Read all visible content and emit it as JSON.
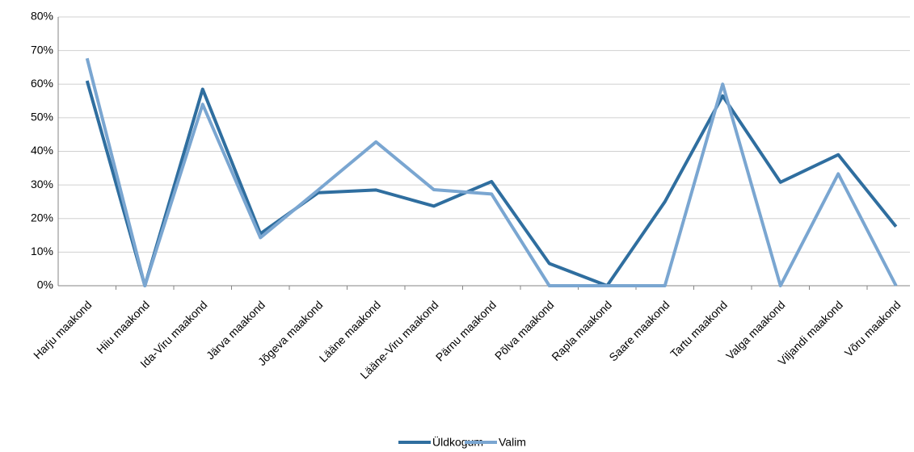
{
  "chart_data": {
    "type": "line",
    "categories": [
      "Harju maakond",
      "Hiiu maakond",
      "Ida-Viru maakond",
      "Järva maakond",
      "Jõgeva maakond",
      "Lääne maakond",
      "Lääne-Viru maakond",
      "Pärnu maakond",
      "Põlva maakond",
      "Rapla maakond",
      "Saare maakond",
      "Tartu maakond",
      "Valga maakond",
      "Viljandi maakond",
      "Võru maakond"
    ],
    "series": [
      {
        "name": "Üldkogum",
        "color": "#2f6e9f",
        "values": [
          61,
          0,
          58.5,
          15.5,
          27.7,
          28.5,
          23.7,
          31,
          6.6,
          0,
          25,
          56.5,
          30.8,
          39,
          17.6
        ]
      },
      {
        "name": "Valim",
        "color": "#7aa6d1",
        "values": [
          67.7,
          0,
          54,
          14.3,
          28.5,
          42.8,
          28.6,
          27.3,
          0,
          0,
          0,
          60,
          0,
          33.3,
          0
        ]
      }
    ],
    "ylim": [
      0,
      80
    ],
    "yticks": [
      {
        "value": 0,
        "label": "0%"
      },
      {
        "value": 10,
        "label": "10%"
      },
      {
        "value": 20,
        "label": "20%"
      },
      {
        "value": 30,
        "label": "30%"
      },
      {
        "value": 40,
        "label": "40%"
      },
      {
        "value": 50,
        "label": "50%"
      },
      {
        "value": 60,
        "label": "60%"
      },
      {
        "value": 70,
        "label": "70%"
      },
      {
        "value": 80,
        "label": "80%"
      }
    ],
    "grid": true,
    "legend": "bottom"
  }
}
